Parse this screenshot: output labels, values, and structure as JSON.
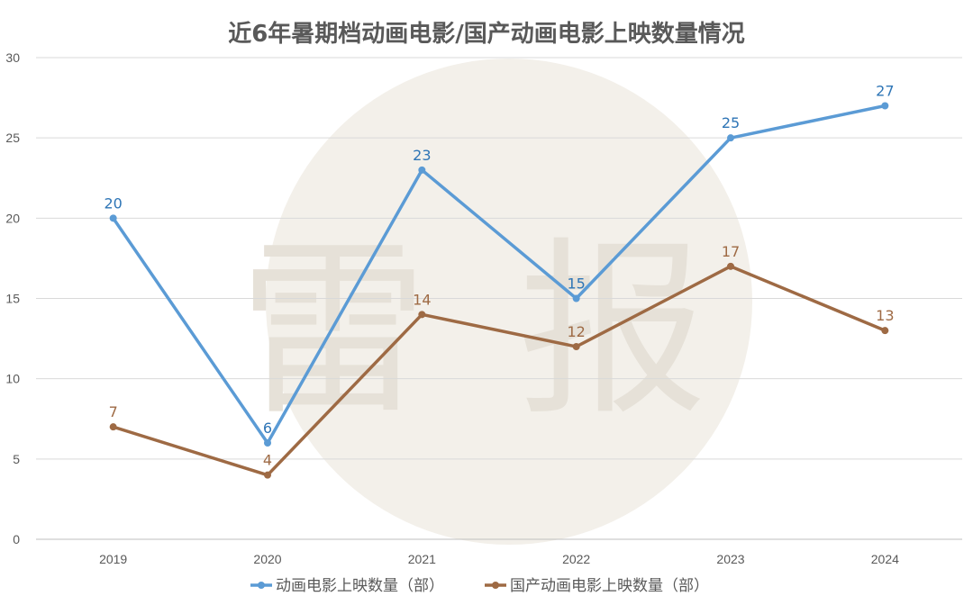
{
  "chart_data": {
    "type": "line",
    "title": "近6年暑期档动画电影/国产动画电影上映数量情况",
    "categories": [
      "2019",
      "2020",
      "2021",
      "2022",
      "2023",
      "2024"
    ],
    "ylim": [
      0,
      30
    ],
    "yticks": [
      "0",
      "5",
      "10",
      "15",
      "20",
      "25",
      "30"
    ],
    "grid": true,
    "legend_position": "bottom",
    "series": [
      {
        "name": "动画电影上映数量（部）",
        "values": [
          20,
          6,
          23,
          15,
          25,
          27
        ],
        "color": "#5b9bd5",
        "label_color": "#2e75b6"
      },
      {
        "name": "国产动画电影上映数量（部）",
        "values": [
          7,
          4,
          14,
          12,
          17,
          13
        ],
        "color": "#9e6a44",
        "label_color": "#9e6a44"
      }
    ],
    "watermark": {
      "chars": [
        "雷",
        "报"
      ],
      "color": "#f3f0ea"
    }
  }
}
